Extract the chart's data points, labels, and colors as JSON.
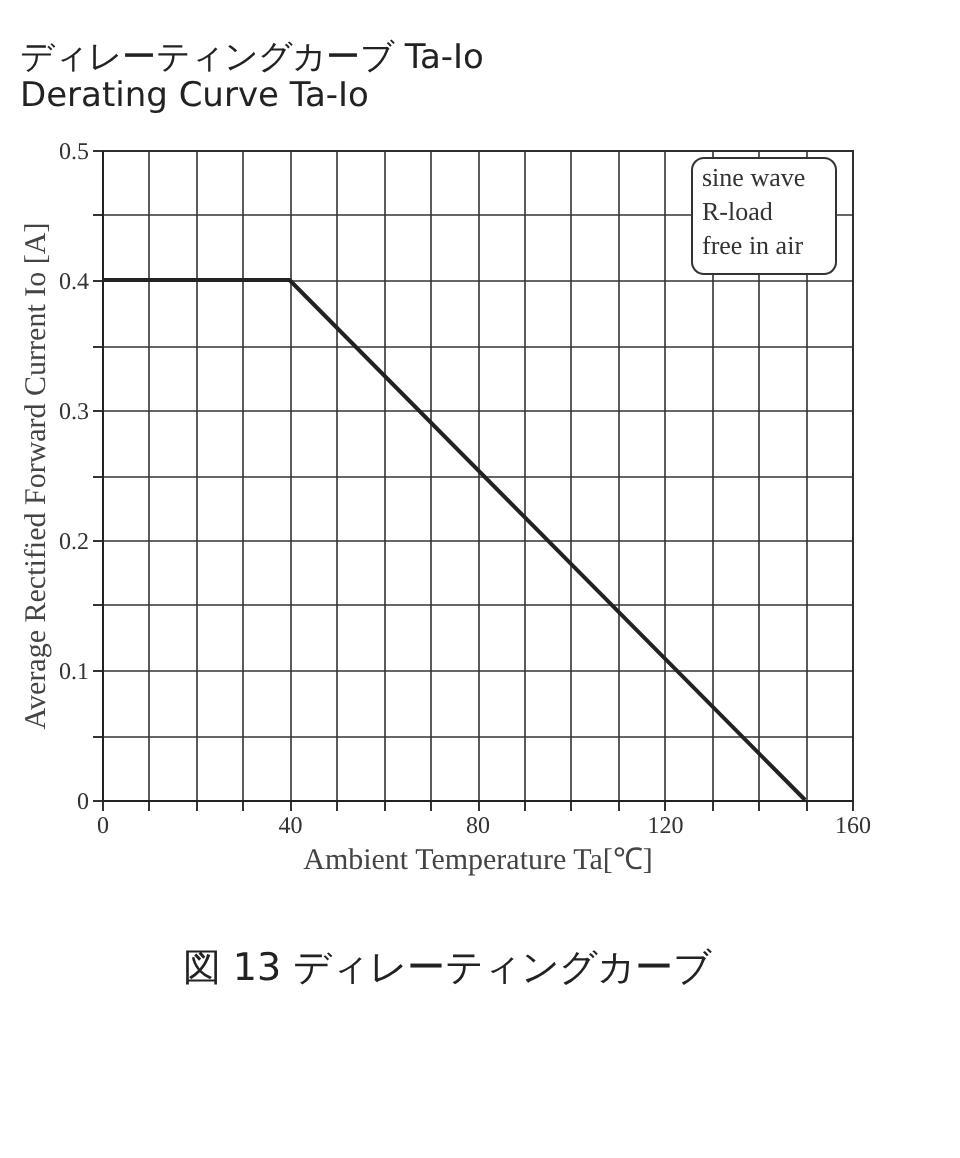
{
  "chart_data": {
    "type": "line",
    "title": [
      "ディレーティングカーブ Ta-Io",
      "Derating Curve Ta-Io"
    ],
    "xlabel": "Ambient Temperature Ta[℃]",
    "ylabel": "Average Rectified Forward Current Io [A]",
    "x": [
      0,
      40,
      150
    ],
    "series": [
      {
        "color": "#222222",
        "values": [
          0.4,
          0.4,
          0
        ]
      }
    ],
    "xlim": [
      0,
      160
    ],
    "xticks": [
      0,
      {
        "value": 10,
        "label": null
      },
      {
        "value": 20,
        "label": null
      },
      {
        "value": 30,
        "label": null
      },
      40,
      {
        "value": 50,
        "label": null
      },
      {
        "value": 60,
        "label": null
      },
      {
        "value": 70,
        "label": null
      },
      80,
      {
        "value": 90,
        "label": null
      },
      {
        "value": 100,
        "label": null
      },
      {
        "value": 110,
        "label": null
      },
      120,
      {
        "value": 130,
        "label": null
      },
      {
        "value": 140,
        "label": null
      },
      {
        "value": 150,
        "label": null
      },
      160
    ],
    "ylim": [
      0,
      0.5
    ],
    "yticks": [
      0,
      {
        "value": 0.05,
        "label": null
      },
      0.1,
      {
        "value": 0.15,
        "label": null
      },
      0.2,
      {
        "value": 0.25,
        "label": null
      },
      0.3,
      {
        "value": 0.35,
        "label": null
      },
      0.4,
      {
        "value": 0.45,
        "label": null
      },
      0.5
    ],
    "grid": true,
    "marker": "none",
    "line_style": "solid",
    "legend": false,
    "annotations": [
      "sine wave\nR-load\nfree in air",
      "図 13 ディレーティングカーブ"
    ]
  }
}
